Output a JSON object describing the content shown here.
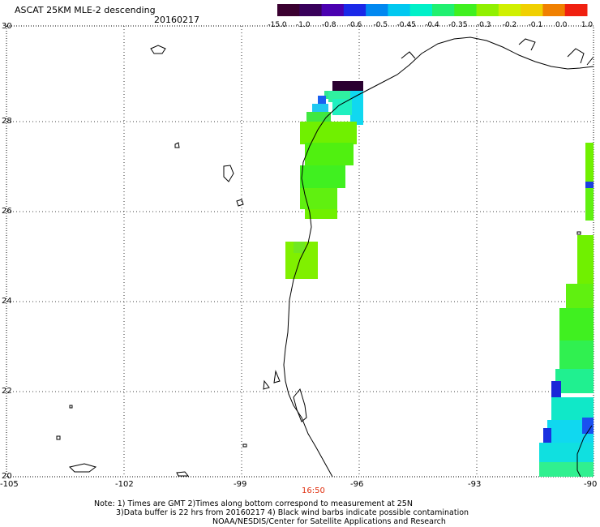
{
  "header": {
    "title": "ASCAT 25KM MLE-2 descending",
    "date": "20160217"
  },
  "colorbar": {
    "labels": [
      "-15.0",
      "-1.0",
      "-0.8",
      "-0.6",
      "-0.5",
      "-0.45",
      "-0.4",
      "-0.35",
      "-0.3",
      "-0.2",
      "-0.1",
      "0.0",
      "1.0"
    ],
    "colors": [
      "#3a0030",
      "#38005a",
      "#4a00b0",
      "#1a28e8",
      "#0088f0",
      "#00c8f0",
      "#00f0c8",
      "#20f070",
      "#40f020",
      "#90f000",
      "#d0f000",
      "#f0d000",
      "#f08000",
      "#f02010"
    ]
  },
  "map": {
    "lat_labels": [
      "30",
      "28",
      "26",
      "24",
      "22",
      "20"
    ],
    "lon_labels": [
      "-105",
      "-102",
      "-99",
      "-96",
      "-93",
      "-90"
    ],
    "time_label": "16:50",
    "grid": "dotted"
  },
  "notes": {
    "line1": "Note: 1) Times are GMT 2)Times along bottom correspond to measurement at 25N",
    "line2": "3)Data buffer is 22 hrs from 20160217 4) Black wind barbs indicate possible contamination",
    "line3": "NOAA/NESDIS/Center for Satellite Applications and Research"
  }
}
